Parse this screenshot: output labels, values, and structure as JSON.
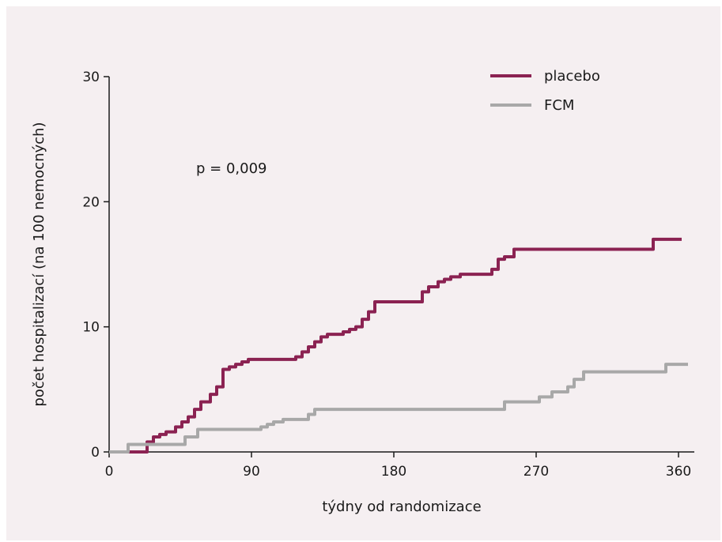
{
  "chart_data": {
    "type": "line",
    "step": true,
    "xlabel": "týdny od randomizace",
    "ylabel": "počet hospitalizací (na 100 nemocných)",
    "xlim": [
      0,
      370
    ],
    "ylim": [
      0,
      30
    ],
    "xticks": [
      0,
      90,
      180,
      270,
      360
    ],
    "yticks": [
      0,
      10,
      20,
      30
    ],
    "annotation": "p = 0,009",
    "legend_position": "top-right",
    "series": [
      {
        "name": "placebo",
        "color": "#8b2252",
        "x": [
          0,
          16,
          24,
          28,
          32,
          36,
          42,
          46,
          50,
          54,
          58,
          64,
          68,
          72,
          76,
          80,
          84,
          88,
          92,
          100,
          110,
          118,
          122,
          126,
          130,
          134,
          138,
          142,
          148,
          152,
          156,
          160,
          164,
          168,
          174,
          190,
          198,
          202,
          208,
          212,
          216,
          222,
          228,
          234,
          242,
          246,
          250,
          256,
          262,
          300,
          340,
          344,
          362
        ],
        "y": [
          0,
          0,
          0.8,
          1.2,
          1.4,
          1.6,
          2.0,
          2.4,
          2.8,
          3.4,
          4.0,
          4.6,
          5.2,
          6.6,
          6.8,
          7.0,
          7.2,
          7.4,
          7.4,
          7.4,
          7.4,
          7.6,
          8.0,
          8.4,
          8.8,
          9.2,
          9.4,
          9.4,
          9.6,
          9.8,
          10.0,
          10.6,
          11.2,
          12.0,
          12.0,
          12.0,
          12.8,
          13.2,
          13.6,
          13.8,
          14.0,
          14.2,
          14.2,
          14.2,
          14.6,
          15.4,
          15.6,
          16.2,
          16.2,
          16.2,
          16.2,
          17.0,
          17.0
        ]
      },
      {
        "name": "FCM",
        "color": "#a8a8a8",
        "x": [
          0,
          12,
          20,
          30,
          40,
          48,
          56,
          64,
          90,
          96,
          100,
          104,
          110,
          116,
          122,
          126,
          130,
          150,
          200,
          240,
          250,
          256,
          266,
          272,
          280,
          290,
          294,
          300,
          330,
          348,
          352,
          366
        ],
        "y": [
          0,
          0.6,
          0.6,
          0.6,
          0.6,
          1.2,
          1.8,
          1.8,
          1.8,
          2.0,
          2.2,
          2.4,
          2.6,
          2.6,
          2.6,
          3.0,
          3.4,
          3.4,
          3.4,
          3.4,
          4.0,
          4.0,
          4.0,
          4.4,
          4.8,
          5.2,
          5.8,
          6.4,
          6.4,
          6.4,
          7.0,
          7.0
        ]
      }
    ]
  }
}
